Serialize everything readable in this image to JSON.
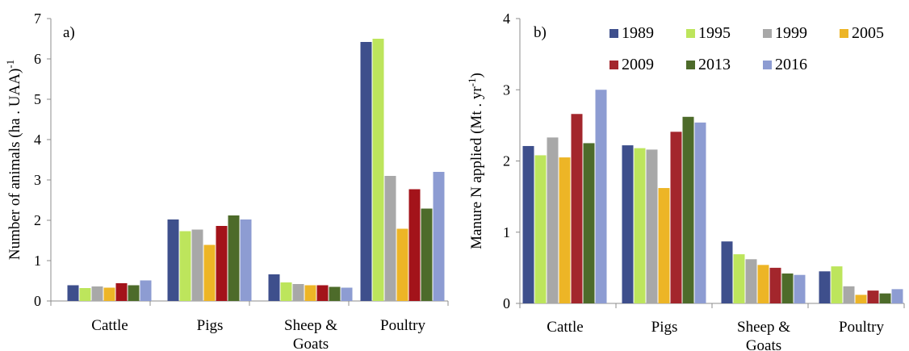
{
  "colors": {
    "1989": "#3e4f8c",
    "1995": "#bde55c",
    "1999": "#a8a8a8",
    "2005": "#edb526",
    "2009": "#a3262c",
    "2013": "#4d6b2a",
    "2016": "#8d9cd2"
  },
  "chart_data": [
    {
      "type": "bar",
      "panel_label": "a)",
      "ylabel": "Number of animals (ha . UAA)",
      "ylabel_sup": "-1",
      "ylim": [
        0,
        7
      ],
      "yticks": [
        "0",
        "1",
        "2",
        "3",
        "4",
        "5",
        "6",
        "7"
      ],
      "categories": [
        [
          "Cattle"
        ],
        [
          "Pigs"
        ],
        [
          "Sheep &",
          "Goats"
        ],
        [
          "Poultry"
        ]
      ],
      "bar_colors": [
        "#3e4f8c",
        "#bde55c",
        "#a8a8a8",
        "#edb526",
        "#a3131a",
        "#4d6b2a",
        "#8d9cd2"
      ],
      "series": [
        {
          "values": [
            0.39,
            2.02,
            0.66,
            6.42
          ]
        },
        {
          "values": [
            0.32,
            1.73,
            0.46,
            6.5
          ]
        },
        {
          "values": [
            0.36,
            1.77,
            0.42,
            3.1
          ]
        },
        {
          "values": [
            0.33,
            1.39,
            0.39,
            1.79
          ]
        },
        {
          "values": [
            0.44,
            1.86,
            0.39,
            2.77
          ]
        },
        {
          "values": [
            0.39,
            2.12,
            0.35,
            2.29
          ]
        },
        {
          "values": [
            0.51,
            2.02,
            0.33,
            3.2
          ]
        }
      ]
    },
    {
      "type": "bar",
      "panel_label": "b)",
      "ylabel": "Manure N applied (Mt . yr",
      "ylabel_sup": "-1",
      "ylabel_close": ")",
      "ylim": [
        0,
        4
      ],
      "yticks": [
        "0",
        "1",
        "2",
        "3",
        "4"
      ],
      "categories": [
        [
          "Cattle"
        ],
        [
          "Pigs"
        ],
        [
          "Sheep &",
          "Goats"
        ],
        [
          "Poultry"
        ]
      ],
      "bar_colors": [
        "#3e4f8c",
        "#bde55c",
        "#a8a8a8",
        "#edb526",
        "#a3262c",
        "#4d6b2a",
        "#8d9cd2"
      ],
      "legend": [
        "1989",
        "1995",
        "1999",
        "2005",
        "2009",
        "2013",
        "2016"
      ],
      "legend_position": "top-right",
      "series": [
        {
          "name": "1989",
          "values": [
            2.21,
            2.22,
            0.87,
            0.45
          ]
        },
        {
          "name": "1995",
          "values": [
            2.08,
            2.18,
            0.69,
            0.52
          ]
        },
        {
          "name": "1999",
          "values": [
            2.33,
            2.16,
            0.62,
            0.24
          ]
        },
        {
          "name": "2005",
          "values": [
            2.05,
            1.62,
            0.54,
            0.12
          ]
        },
        {
          "name": "2009",
          "values": [
            2.66,
            2.41,
            0.5,
            0.18
          ]
        },
        {
          "name": "2013",
          "values": [
            2.25,
            2.62,
            0.42,
            0.14
          ]
        },
        {
          "name": "2016",
          "values": [
            3.0,
            2.54,
            0.4,
            0.2
          ]
        }
      ]
    }
  ]
}
